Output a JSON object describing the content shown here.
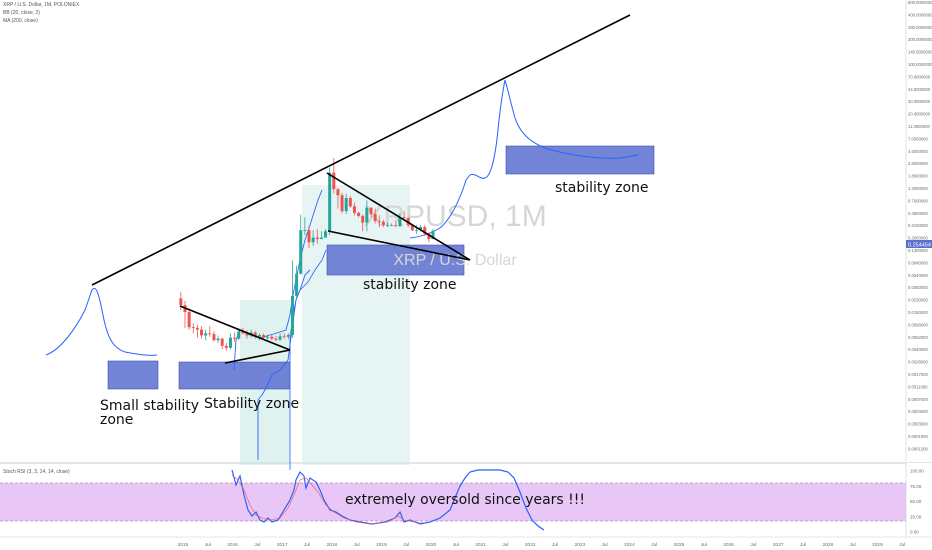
{
  "header": {
    "title": "XRP / U.S. Dollar, 1M, POLONIEX",
    "bb": "BB (20, close, 2)",
    "ma": "MA (200, close)"
  },
  "watermark": {
    "symbol": "XRPUSD, 1M",
    "name": "XRP / U.S. Dollar"
  },
  "price_tag": "0.254454",
  "rsi_label": "Stoch RSI (3, 3, 14, 14, close)",
  "colors": {
    "up": "#26a69a",
    "down": "#ef5350",
    "band": "#2962ff",
    "zone_fill": "#5b6fcf",
    "rsi_bg": "#e8c7f7",
    "bb_fill": "#c7e8e4"
  },
  "annotations": {
    "small_zone": [
      "Small stability",
      "zone"
    ],
    "stability_zone_1": "Stability zone",
    "stability_zone_2": "stability zone",
    "stability_zone_3": "stability zone",
    "rsi_note": "extremely oversold since years !!!"
  },
  "chart_data": {
    "type": "candlestick",
    "y_scale": "log",
    "y_axis_labels": [
      "600.0000000",
      "400.0000000",
      "280.0000000",
      "200.0000000",
      "140.0000000",
      "100.0000000",
      "70.0000000",
      "44.0000000",
      "30.0000000",
      "20.0000000",
      "11.0000000",
      "7.0000000",
      "4.5000000",
      "2.8000000",
      "1.8000000",
      "1.2000000",
      "0.7600000",
      "0.4800000",
      "0.3100000",
      "0.2000000",
      "0.1300000",
      "0.0840000",
      "0.0540000",
      "0.0350000",
      "0.0230000",
      "0.0150000",
      "0.0096000",
      "0.0062000",
      "0.0040000",
      "0.0026000",
      "0.0017000",
      "0.0011000",
      "0.0007000",
      "0.0004600",
      "0.0003000",
      "0.0001900",
      "0.0001200"
    ],
    "x_axis_labels": [
      "2015",
      "Jul",
      "2016",
      "Jul",
      "2017",
      "Jul",
      "2018",
      "Jul",
      "2019",
      "Jul",
      "2020",
      "Jul",
      "2021",
      "Jul",
      "2022",
      "Jul",
      "2023",
      "Jul",
      "2024",
      "Jul",
      "2025",
      "Jul",
      "2026",
      "Jul",
      "2027",
      "Jul",
      "2028",
      "Jul",
      "2029",
      "Jul"
    ],
    "rsi_axis_labels": [
      "100.00",
      "75.00",
      "50.00",
      "25.00",
      "0.00"
    ],
    "candles": [
      {
        "t": "2014-12",
        "o": 0.024,
        "h": 0.03,
        "l": 0.016,
        "c": 0.019
      },
      {
        "t": "2015-01",
        "o": 0.019,
        "h": 0.022,
        "l": 0.0085,
        "c": 0.015
      },
      {
        "t": "2015-02",
        "o": 0.015,
        "h": 0.017,
        "l": 0.008,
        "c": 0.0087
      },
      {
        "t": "2015-03",
        "o": 0.0087,
        "h": 0.01,
        "l": 0.007,
        "c": 0.0085
      },
      {
        "t": "2015-04",
        "o": 0.0085,
        "h": 0.0095,
        "l": 0.006,
        "c": 0.008
      },
      {
        "t": "2015-05",
        "o": 0.008,
        "h": 0.009,
        "l": 0.0058,
        "c": 0.0065
      },
      {
        "t": "2015-06",
        "o": 0.0065,
        "h": 0.008,
        "l": 0.0055,
        "c": 0.007
      },
      {
        "t": "2015-07",
        "o": 0.007,
        "h": 0.009,
        "l": 0.0062,
        "c": 0.0068
      },
      {
        "t": "2015-08",
        "o": 0.0068,
        "h": 0.0075,
        "l": 0.0052,
        "c": 0.0055
      },
      {
        "t": "2015-09",
        "o": 0.0055,
        "h": 0.0065,
        "l": 0.005,
        "c": 0.0058
      },
      {
        "t": "2015-10",
        "o": 0.0058,
        "h": 0.006,
        "l": 0.004,
        "c": 0.0045
      },
      {
        "t": "2015-11",
        "o": 0.0045,
        "h": 0.005,
        "l": 0.0038,
        "c": 0.0042
      },
      {
        "t": "2015-12",
        "o": 0.0042,
        "h": 0.007,
        "l": 0.004,
        "c": 0.006
      },
      {
        "t": "2016-01",
        "o": 0.006,
        "h": 0.0072,
        "l": 0.0052,
        "c": 0.0058
      },
      {
        "t": "2016-02",
        "o": 0.0058,
        "h": 0.008,
        "l": 0.0055,
        "c": 0.0075
      },
      {
        "t": "2016-03",
        "o": 0.0075,
        "h": 0.0085,
        "l": 0.0068,
        "c": 0.007
      },
      {
        "t": "2016-04",
        "o": 0.007,
        "h": 0.0078,
        "l": 0.0058,
        "c": 0.0065
      },
      {
        "t": "2016-05",
        "o": 0.0065,
        "h": 0.008,
        "l": 0.006,
        "c": 0.0072
      },
      {
        "t": "2016-06",
        "o": 0.0072,
        "h": 0.0076,
        "l": 0.0058,
        "c": 0.0062
      },
      {
        "t": "2016-07",
        "o": 0.0062,
        "h": 0.007,
        "l": 0.0055,
        "c": 0.0066
      },
      {
        "t": "2016-08",
        "o": 0.0066,
        "h": 0.007,
        "l": 0.0058,
        "c": 0.006
      },
      {
        "t": "2016-09",
        "o": 0.006,
        "h": 0.0067,
        "l": 0.0056,
        "c": 0.0062
      },
      {
        "t": "2016-10",
        "o": 0.0062,
        "h": 0.0066,
        "l": 0.0055,
        "c": 0.0058
      },
      {
        "t": "2016-11",
        "o": 0.0058,
        "h": 0.0064,
        "l": 0.0053,
        "c": 0.0056
      },
      {
        "t": "2016-12",
        "o": 0.0056,
        "h": 0.007,
        "l": 0.0054,
        "c": 0.0063
      },
      {
        "t": "2017-01",
        "o": 0.0063,
        "h": 0.007,
        "l": 0.0058,
        "c": 0.0062
      },
      {
        "t": "2017-02",
        "o": 0.0062,
        "h": 0.007,
        "l": 0.0057,
        "c": 0.0066
      },
      {
        "t": "2017-03",
        "o": 0.0066,
        "h": 0.09,
        "l": 0.006,
        "c": 0.026
      },
      {
        "t": "2017-04",
        "o": 0.026,
        "h": 0.075,
        "l": 0.024,
        "c": 0.056
      },
      {
        "t": "2017-05",
        "o": 0.056,
        "h": 0.45,
        "l": 0.055,
        "c": 0.26
      },
      {
        "t": "2017-06",
        "o": 0.26,
        "h": 0.41,
        "l": 0.22,
        "c": 0.26
      },
      {
        "t": "2017-07",
        "o": 0.26,
        "h": 0.3,
        "l": 0.14,
        "c": 0.17
      },
      {
        "t": "2017-08",
        "o": 0.17,
        "h": 0.26,
        "l": 0.15,
        "c": 0.2
      },
      {
        "t": "2017-09",
        "o": 0.2,
        "h": 0.27,
        "l": 0.16,
        "c": 0.19
      },
      {
        "t": "2017-10",
        "o": 0.19,
        "h": 0.25,
        "l": 0.19,
        "c": 0.2
      },
      {
        "t": "2017-11",
        "o": 0.2,
        "h": 0.27,
        "l": 0.2,
        "c": 0.25
      },
      {
        "t": "2017-12",
        "o": 0.25,
        "h": 2.4,
        "l": 0.22,
        "c": 2.0
      },
      {
        "t": "2018-01",
        "o": 2.0,
        "h": 3.4,
        "l": 0.98,
        "c": 1.15
      },
      {
        "t": "2018-02",
        "o": 1.15,
        "h": 1.2,
        "l": 0.56,
        "c": 0.92
      },
      {
        "t": "2018-03",
        "o": 0.92,
        "h": 1.0,
        "l": 0.47,
        "c": 0.51
      },
      {
        "t": "2018-04",
        "o": 0.51,
        "h": 0.97,
        "l": 0.46,
        "c": 0.83
      },
      {
        "t": "2018-05",
        "o": 0.83,
        "h": 0.9,
        "l": 0.58,
        "c": 0.61
      },
      {
        "t": "2018-06",
        "o": 0.61,
        "h": 0.7,
        "l": 0.44,
        "c": 0.48
      },
      {
        "t": "2018-07",
        "o": 0.48,
        "h": 0.5,
        "l": 0.41,
        "c": 0.43
      },
      {
        "t": "2018-08",
        "o": 0.43,
        "h": 0.45,
        "l": 0.25,
        "c": 0.34
      },
      {
        "t": "2018-09",
        "o": 0.34,
        "h": 0.76,
        "l": 0.25,
        "c": 0.58
      },
      {
        "t": "2018-10",
        "o": 0.58,
        "h": 0.59,
        "l": 0.41,
        "c": 0.46
      },
      {
        "t": "2018-11",
        "o": 0.46,
        "h": 0.56,
        "l": 0.33,
        "c": 0.36
      },
      {
        "t": "2018-12",
        "o": 0.36,
        "h": 0.44,
        "l": 0.29,
        "c": 0.35
      },
      {
        "t": "2019-01",
        "o": 0.35,
        "h": 0.37,
        "l": 0.29,
        "c": 0.31
      },
      {
        "t": "2019-02",
        "o": 0.31,
        "h": 0.34,
        "l": 0.29,
        "c": 0.31
      },
      {
        "t": "2019-03",
        "o": 0.31,
        "h": 0.33,
        "l": 0.3,
        "c": 0.31
      },
      {
        "t": "2019-04",
        "o": 0.31,
        "h": 0.37,
        "l": 0.29,
        "c": 0.3
      },
      {
        "t": "2019-05",
        "o": 0.3,
        "h": 0.47,
        "l": 0.29,
        "c": 0.41
      },
      {
        "t": "2019-06",
        "o": 0.41,
        "h": 0.51,
        "l": 0.37,
        "c": 0.4
      },
      {
        "t": "2019-07",
        "o": 0.4,
        "h": 0.41,
        "l": 0.29,
        "c": 0.31
      },
      {
        "t": "2019-08",
        "o": 0.31,
        "h": 0.32,
        "l": 0.25,
        "c": 0.26
      },
      {
        "t": "2019-09",
        "o": 0.26,
        "h": 0.31,
        "l": 0.23,
        "c": 0.26
      },
      {
        "t": "2019-10",
        "o": 0.26,
        "h": 0.31,
        "l": 0.25,
        "c": 0.29
      },
      {
        "t": "2019-11",
        "o": 0.29,
        "h": 0.31,
        "l": 0.21,
        "c": 0.23
      },
      {
        "t": "2019-12",
        "o": 0.23,
        "h": 0.24,
        "l": 0.17,
        "c": 0.19
      },
      {
        "t": "2020-01",
        "o": 0.19,
        "h": 0.27,
        "l": 0.19,
        "c": 0.254454
      }
    ]
  }
}
